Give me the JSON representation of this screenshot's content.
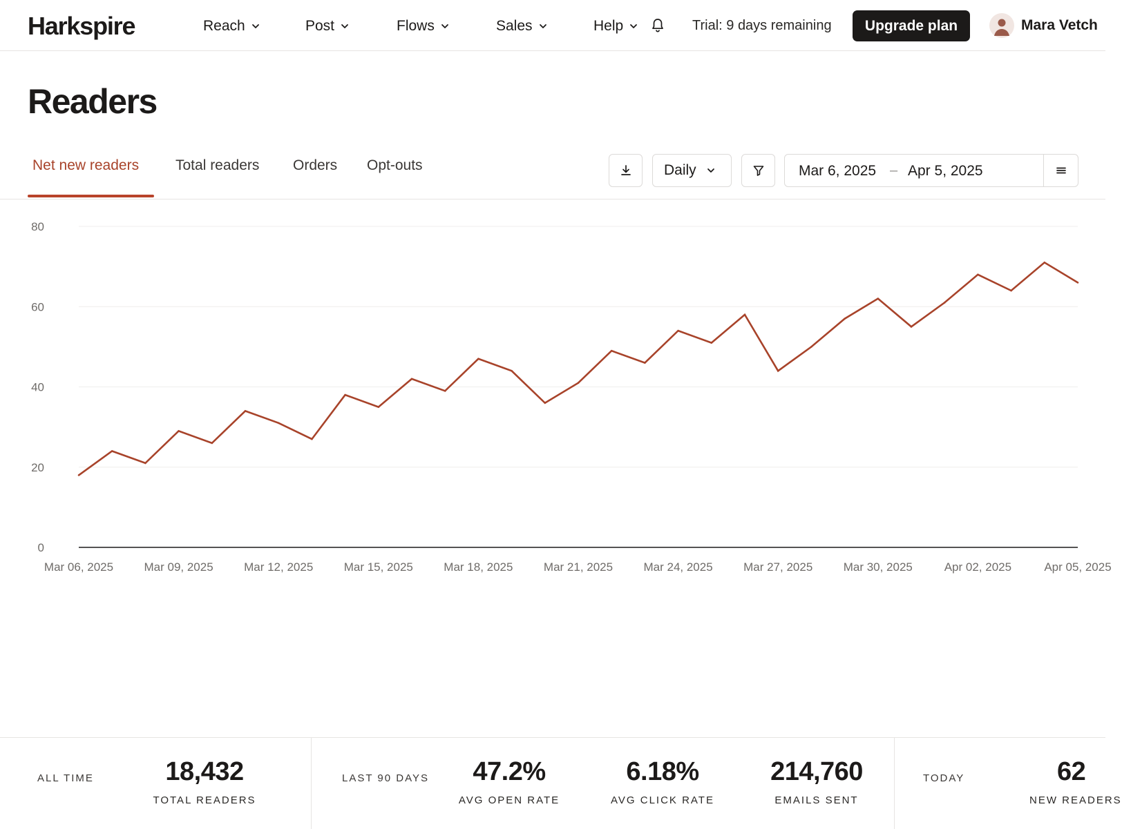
{
  "brand": {
    "name": "Harkspire",
    "accent": "#a8432a",
    "line_color": "#a8432a"
  },
  "nav": {
    "items": [
      {
        "label": "Reach",
        "icon": "chevron-down-icon"
      },
      {
        "label": "Post",
        "icon": "chevron-down-icon"
      },
      {
        "label": "Flows",
        "icon": "chevron-down-icon"
      },
      {
        "label": "Sales",
        "icon": "chevron-down-icon"
      },
      {
        "label": "Help",
        "icon": "chevron-down-icon"
      }
    ],
    "notification_icon": "bell-icon",
    "trial_text": "Trial: 9 days remaining",
    "upgrade_label": "Upgrade plan",
    "user_name": "Mara Vetch",
    "avatar_icon": "user-avatar-icon"
  },
  "page": {
    "title": "Readers"
  },
  "tabs": [
    {
      "label": "Net new readers",
      "active": true
    },
    {
      "label": "Total readers",
      "active": false
    },
    {
      "label": "Orders",
      "active": false
    },
    {
      "label": "Opt-outs",
      "active": false
    }
  ],
  "toolbar": {
    "download_icon": "download-icon",
    "interval": "Daily",
    "filter_icon": "filter-icon",
    "date_start": "Mar 6, 2025",
    "date_separator": "–",
    "date_end": "Apr 5, 2025",
    "menu_icon": "menu-icon"
  },
  "chart_data": {
    "type": "line",
    "ylim": [
      0,
      80
    ],
    "yticks": [
      "0",
      "20",
      "40",
      "60",
      "80"
    ],
    "xtick_labels": [
      "Mar 06, 2025",
      "Mar 09, 2025",
      "Mar 12, 2025",
      "Mar 15, 2025",
      "Mar 18, 2025",
      "Mar 21, 2025",
      "Mar 24, 2025",
      "Mar 27, 2025",
      "Mar 30, 2025",
      "Apr 02, 2025",
      "Apr 05, 2025"
    ],
    "x": [
      "2025-03-06",
      "2025-03-07",
      "2025-03-08",
      "2025-03-09",
      "2025-03-10",
      "2025-03-11",
      "2025-03-12",
      "2025-03-13",
      "2025-03-14",
      "2025-03-15",
      "2025-03-16",
      "2025-03-17",
      "2025-03-18",
      "2025-03-19",
      "2025-03-20",
      "2025-03-21",
      "2025-03-22",
      "2025-03-23",
      "2025-03-24",
      "2025-03-25",
      "2025-03-26",
      "2025-03-27",
      "2025-03-28",
      "2025-03-29",
      "2025-03-30",
      "2025-03-31",
      "2025-04-01",
      "2025-04-02",
      "2025-04-03",
      "2025-04-04",
      "2025-04-05"
    ],
    "series": [
      {
        "values": [
          18,
          24,
          21,
          29,
          26,
          34,
          31,
          27,
          38,
          35,
          42,
          39,
          47,
          44,
          36,
          41,
          49,
          46,
          54,
          51,
          58,
          44,
          50,
          57,
          62,
          55,
          61,
          68,
          64,
          71,
          66
        ]
      }
    ],
    "grid": true
  },
  "stats": {
    "sections": [
      {
        "label": "ALL TIME",
        "metrics": [
          {
            "value": "18,432",
            "label": "TOTAL READERS"
          }
        ]
      },
      {
        "label": "LAST 90 DAYS",
        "metrics": [
          {
            "value": "47.2%",
            "label": "AVG OPEN RATE"
          },
          {
            "value": "6.18%",
            "label": "AVG CLICK RATE"
          },
          {
            "value": "214,760",
            "label": "EMAILS SENT"
          }
        ]
      },
      {
        "label": "TODAY",
        "metrics": [
          {
            "value": "62",
            "label": "NEW READERS"
          }
        ]
      }
    ]
  }
}
